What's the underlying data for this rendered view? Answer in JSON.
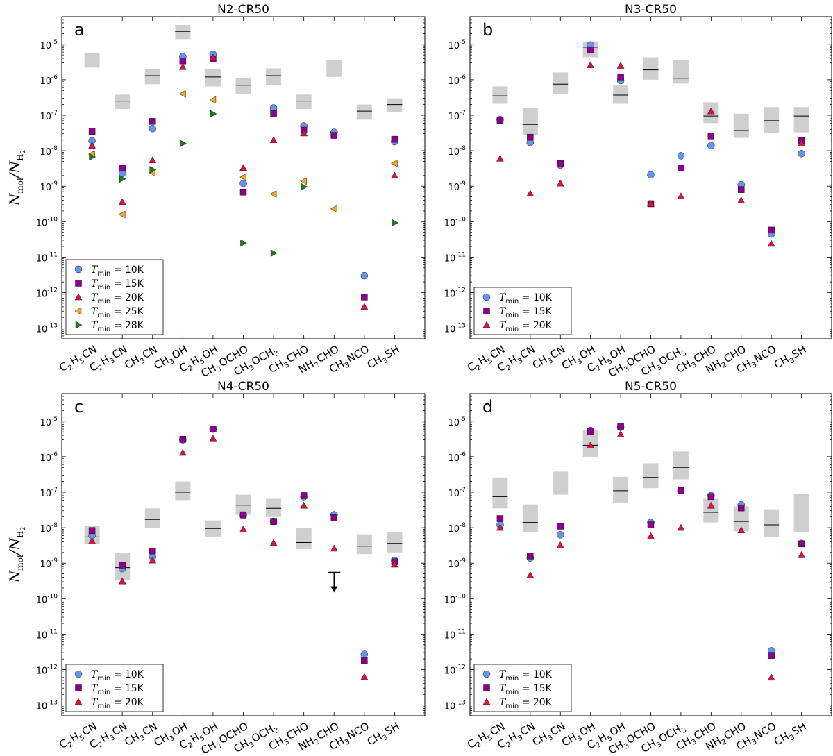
{
  "y_axis_label": {
    "main": "N",
    "num_sub": "mol",
    "den_sub": "H",
    "den_subsub": "2"
  },
  "chart_data": [
    {
      "type": "scatter",
      "title": "N2-CR50",
      "panel_label": "a",
      "yscale": "log",
      "ylim": [
        5e-14,
        6e-05
      ],
      "legend_position": "lower-left",
      "categories": [
        "C2H5CN",
        "C2H3CN",
        "CH3CN",
        "CH3OH",
        "C2H5OH",
        "CH3OCHO",
        "CH3OCH3",
        "CH3CHO",
        "NH2CHO",
        "CH3NCO",
        "CH3SH"
      ],
      "observed": [
        {
          "category": "C2H5CN",
          "value": 3.6e-06,
          "low": 2.2e-06,
          "high": 5.6e-06
        },
        {
          "category": "C2H3CN",
          "value": 2.5e-07,
          "low": 1.5e-07,
          "high": 3.8e-07
        },
        {
          "category": "CH3CN",
          "value": 1.3e-06,
          "low": 7.5e-07,
          "high": 2e-06
        },
        {
          "category": "CH3OH",
          "value": 2.3e-05,
          "low": 1.4e-05,
          "high": 3.5e-05
        },
        {
          "category": "C2H5OH",
          "value": 1.2e-06,
          "low": 6.5e-07,
          "high": 2e-06
        },
        {
          "category": "CH3OCHO",
          "value": 7e-07,
          "low": 4e-07,
          "high": 1.1e-06
        },
        {
          "category": "CH3OCH3",
          "value": 1.3e-06,
          "low": 7e-07,
          "high": 2.1e-06
        },
        {
          "category": "CH3CHO",
          "value": 2.5e-07,
          "low": 1.5e-07,
          "high": 3.8e-07
        },
        {
          "category": "NH2CHO",
          "value": 2e-06,
          "low": 1.2e-06,
          "high": 3.5e-06
        },
        {
          "category": "CH3NCO",
          "value": 1.3e-07,
          "low": 7.5e-08,
          "high": 2e-07
        },
        {
          "category": "CH3SH",
          "value": 2e-07,
          "low": 1.2e-07,
          "high": 3e-07
        }
      ],
      "upper_limits": [],
      "series": [
        {
          "name": "T_min = 10K",
          "marker": "circle",
          "color": "#6495ED",
          "values": [
            1.9e-08,
            2.3e-09,
            4.2e-08,
            4.5e-06,
            5.2e-06,
            1.2e-09,
            1.6e-07,
            5e-08,
            3.3e-08,
            3e-12,
            1.8e-08
          ]
        },
        {
          "name": "T_min = 15K",
          "marker": "square",
          "color": "#8B008B",
          "values": [
            3.5e-08,
            3.2e-09,
            6.7e-08,
            3.4e-06,
            3.8e-06,
            6.8e-10,
            1.1e-07,
            3.8e-08,
            2.7e-08,
            7.5e-13,
            2.1e-08
          ]
        },
        {
          "name": "T_min = 20K",
          "marker": "triangle-up",
          "color": "#DC143C",
          "values": [
            1.4e-08,
            3.6e-10,
            5.4e-09,
            2.3e-06,
            4.2e-06,
            3.3e-09,
            2e-08,
            3.1e-08,
            null,
            4e-13,
            2e-09
          ]
        },
        {
          "name": "T_min = 25K",
          "marker": "triangle-left",
          "color": "#F5A623",
          "values": [
            8e-09,
            1.6e-10,
            2.4e-09,
            4e-07,
            2.7e-07,
            1.8e-09,
            6e-10,
            1.4e-09,
            2.3e-10,
            null,
            4.4e-09
          ]
        },
        {
          "name": "T_min = 28K",
          "marker": "triangle-right",
          "color": "#1E7B1E",
          "values": [
            6.7e-09,
            1.6e-09,
            2.9e-09,
            1.6e-08,
            1.1e-07,
            2.5e-11,
            1.3e-11,
            9.6e-10,
            null,
            null,
            9.3e-11
          ]
        }
      ]
    },
    {
      "type": "scatter",
      "title": "N3-CR50",
      "panel_label": "b",
      "yscale": "log",
      "ylim": [
        5e-14,
        6e-05
      ],
      "legend_position": "lower-left",
      "categories": [
        "C2H5CN",
        "C2H3CN",
        "CH3CN",
        "CH3OH",
        "C2H5OH",
        "CH3OCHO",
        "CH3OCH3",
        "CH3CHO",
        "NH2CHO",
        "CH3NCO",
        "CH3SH"
      ],
      "observed": [
        {
          "category": "C2H5CN",
          "value": 3.5e-07,
          "low": 2.1e-07,
          "high": 6.5e-07
        },
        {
          "category": "C2H3CN",
          "value": 5.5e-08,
          "low": 2.8e-08,
          "high": 1.6e-07
        },
        {
          "category": "CH3CN",
          "value": 7.5e-07,
          "low": 4e-07,
          "high": 1.6e-06
        },
        {
          "category": "CH3OH",
          "value": 8.3e-06,
          "low": 4.3e-06,
          "high": 1.2e-05
        },
        {
          "category": "C2H5OH",
          "value": 3.7e-07,
          "low": 2.1e-07,
          "high": 7e-07
        },
        {
          "category": "CH3OCHO",
          "value": 1.9e-06,
          "low": 1e-06,
          "high": 4.3e-06
        },
        {
          "category": "CH3OCH3",
          "value": 1.1e-06,
          "low": 7.8e-07,
          "high": 3.6e-06
        },
        {
          "category": "CH3CHO",
          "value": 9.5e-08,
          "low": 6e-08,
          "high": 2.3e-07
        },
        {
          "category": "NH2CHO",
          "value": 3.7e-08,
          "low": 2.3e-08,
          "high": 1.1e-07
        },
        {
          "category": "CH3NCO",
          "value": 7e-08,
          "low": 3.2e-08,
          "high": 1.7e-07
        },
        {
          "category": "CH3SH",
          "value": 9.5e-08,
          "low": 3.3e-08,
          "high": 1.7e-07
        }
      ],
      "upper_limits": [],
      "series": [
        {
          "name": "T_min = 10K",
          "marker": "circle",
          "color": "#6495ED",
          "values": [
            7.5e-08,
            1.7e-08,
            3.9e-09,
            9.5e-06,
            9.5e-07,
            2.1e-09,
            7.2e-09,
            1.4e-08,
            1.1e-09,
            4.5e-11,
            8.3e-09
          ]
        },
        {
          "name": "T_min = 15K",
          "marker": "square",
          "color": "#8B008B",
          "values": [
            7.2e-08,
            2.4e-08,
            4.3e-09,
            6.8e-06,
            1.2e-06,
            3.2e-10,
            3.3e-09,
            2.6e-08,
            8e-10,
            5.8e-11,
            1.9e-08
          ]
        },
        {
          "name": "T_min = 20K",
          "marker": "triangle-up",
          "color": "#DC143C",
          "values": [
            6e-09,
            6.2e-10,
            1.2e-09,
            2.6e-06,
            2.5e-06,
            3.2e-10,
            5.2e-10,
            1.3e-07,
            4e-10,
            2.4e-11,
            1.6e-08
          ]
        }
      ]
    },
    {
      "type": "scatter",
      "title": "N4-CR50",
      "panel_label": "c",
      "yscale": "log",
      "ylim": [
        5e-14,
        6e-05
      ],
      "legend_position": "lower-left",
      "categories": [
        "C2H5CN",
        "C2H3CN",
        "CH3CN",
        "CH3OH",
        "C2H5OH",
        "CH3OCHO",
        "CH3OCH3",
        "CH3CHO",
        "NH2CHO",
        "CH3NCO",
        "CH3SH"
      ],
      "observed": [
        {
          "category": "C2H5CN",
          "value": 5.5e-09,
          "low": 3.5e-09,
          "high": 1.1e-08
        },
        {
          "category": "C2H3CN",
          "value": 7.5e-10,
          "low": 3.3e-10,
          "high": 1.9e-09
        },
        {
          "category": "CH3CN",
          "value": 1.7e-08,
          "low": 1e-08,
          "high": 3.5e-08
        },
        {
          "category": "CH3OH",
          "value": 1e-07,
          "low": 6e-08,
          "high": 2e-07
        },
        {
          "category": "C2H5OH",
          "value": 9.5e-09,
          "low": 5.5e-09,
          "high": 1.6e-08
        },
        {
          "category": "CH3OCHO",
          "value": 4.3e-08,
          "low": 2.3e-08,
          "high": 8.5e-08
        },
        {
          "category": "CH3OCH3",
          "value": 3.5e-08,
          "low": 2e-08,
          "high": 6.5e-08
        },
        {
          "category": "CH3CHO",
          "value": 3.8e-09,
          "low": 2.5e-09,
          "high": 1e-08
        },
        {
          "category": "CH3NCO",
          "value": 3e-09,
          "low": 1.8e-09,
          "high": 6.5e-09
        },
        {
          "category": "CH3SH",
          "value": 3.6e-09,
          "low": 2e-09,
          "high": 7.5e-09
        }
      ],
      "upper_limits": [
        {
          "category": "NH2CHO",
          "value": 5.5e-10
        }
      ],
      "series": [
        {
          "name": "T_min = 10K",
          "marker": "circle",
          "color": "#6495ED",
          "values": [
            6e-09,
            7e-10,
            1.5e-09,
            3e-06,
            6e-06,
            2.2e-08,
            1.5e-08,
            7.5e-08,
            2.3e-08,
            2.7e-12,
            1.2e-09
          ]
        },
        {
          "name": "T_min = 15K",
          "marker": "square",
          "color": "#8B008B",
          "values": [
            8.3e-09,
            8.8e-10,
            2.2e-09,
            3.1e-06,
            6e-06,
            2.3e-08,
            1.5e-08,
            8e-08,
            1.9e-08,
            1.8e-12,
            1.1e-09
          ]
        },
        {
          "name": "T_min = 20K",
          "marker": "triangle-up",
          "color": "#DC143C",
          "values": [
            4.2e-09,
            3.1e-10,
            1.2e-09,
            1.3e-06,
            3.3e-06,
            9e-09,
            3.7e-09,
            4.2e-08,
            2.6e-09,
            6.2e-13,
            9.2e-10
          ]
        }
      ]
    },
    {
      "type": "scatter",
      "title": "N5-CR50",
      "panel_label": "d",
      "yscale": "log",
      "ylim": [
        5e-14,
        6e-05
      ],
      "legend_position": "lower-left",
      "categories": [
        "C2H5CN",
        "C2H3CN",
        "CH3CN",
        "CH3OH",
        "C2H5OH",
        "CH3OCHO",
        "CH3OCH3",
        "CH3CHO",
        "NH2CHO",
        "CH3NCO",
        "CH3SH"
      ],
      "observed": [
        {
          "category": "C2H5CN",
          "value": 7.5e-08,
          "low": 3.5e-08,
          "high": 2.6e-07
        },
        {
          "category": "C2H3CN",
          "value": 1.4e-08,
          "low": 7.5e-09,
          "high": 4.5e-08
        },
        {
          "category": "CH3CN",
          "value": 1.6e-07,
          "low": 8.5e-08,
          "high": 3.8e-07
        },
        {
          "category": "CH3OH",
          "value": 2.1e-06,
          "low": 1e-06,
          "high": 5.5e-06
        },
        {
          "category": "C2H5OH",
          "value": 1.1e-07,
          "low": 5e-08,
          "high": 2.7e-07
        },
        {
          "category": "CH3OCHO",
          "value": 2.6e-07,
          "low": 1.3e-07,
          "high": 6.5e-07
        },
        {
          "category": "CH3OCH3",
          "value": 5e-07,
          "low": 2.3e-07,
          "high": 1.4e-06
        },
        {
          "category": "CH3CHO",
          "value": 2.7e-08,
          "low": 1.4e-08,
          "high": 6.5e-08
        },
        {
          "category": "NH2CHO",
          "value": 1.5e-08,
          "low": 8e-09,
          "high": 4e-08
        },
        {
          "category": "CH3NCO",
          "value": 1.2e-08,
          "low": 5.5e-09,
          "high": 3.3e-08
        },
        {
          "category": "CH3SH",
          "value": 3.8e-08,
          "low": 7.5e-09,
          "high": 9e-08
        }
      ],
      "upper_limits": [],
      "series": [
        {
          "name": "T_min = 10K",
          "marker": "circle",
          "color": "#6495ED",
          "values": [
            1.2e-08,
            1.4e-09,
            6.3e-09,
            5.5e-06,
            6.8e-06,
            1.4e-08,
            1.1e-07,
            8e-08,
            4.4e-08,
            3.4e-12,
            3.6e-09
          ]
        },
        {
          "name": "T_min = 15K",
          "marker": "square",
          "color": "#8B008B",
          "values": [
            1.8e-08,
            1.6e-09,
            1.1e-08,
            5.2e-06,
            7.2e-06,
            1.2e-08,
            1.1e-07,
            7.5e-08,
            3.6e-08,
            2.5e-12,
            3.5e-09
          ]
        },
        {
          "name": "T_min = 20K",
          "marker": "triangle-up",
          "color": "#DC143C",
          "values": [
            1e-08,
            4.6e-10,
            3.2e-09,
            2.1e-06,
            4.3e-06,
            5.8e-09,
            1e-08,
            4.2e-08,
            8.5e-09,
            6e-13,
            1.7e-09
          ]
        }
      ]
    }
  ]
}
